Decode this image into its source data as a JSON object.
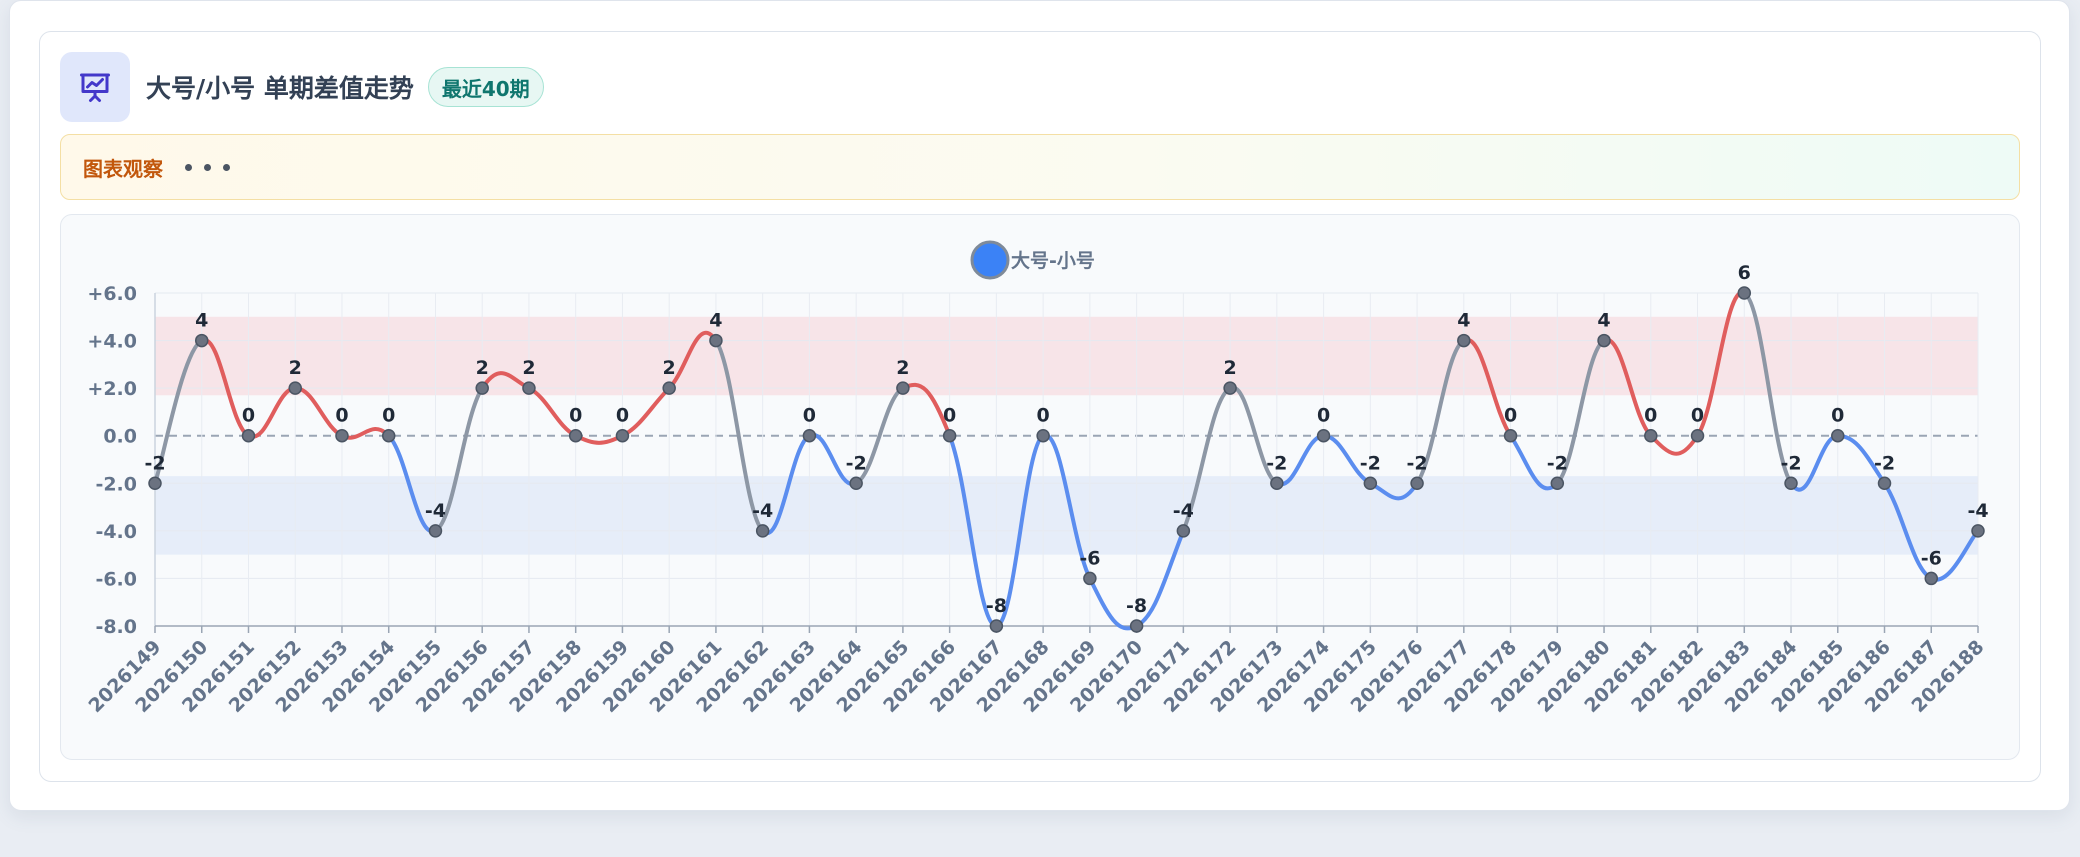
{
  "header": {
    "title": "大号/小号 单期差值走势",
    "badge": "最近40期",
    "icon": "presentation-chart-icon"
  },
  "observation": {
    "label": "图表观察"
  },
  "colors": {
    "positive": "#e05d5d",
    "negative": "#5b8def",
    "neutral": "#8d97a5",
    "legend": "#3b82f6",
    "band_positive": "#f7e4e8",
    "band_negative": "#e6edf9"
  },
  "chart_data": {
    "type": "line",
    "title": "",
    "xlabel": "",
    "ylabel": "",
    "ylim": [
      -8,
      6
    ],
    "yticks": [
      "+6.0",
      "+4.0",
      "+2.0",
      "0.0",
      "-2.0",
      "-4.0",
      "-6.0",
      "-8.0"
    ],
    "ytick_values": [
      6,
      4,
      2,
      0,
      -2,
      -4,
      -6,
      -8
    ],
    "legend_position": "top-center",
    "grid": true,
    "bands": [
      {
        "from": 1.7,
        "to": 5.0,
        "name": "positive"
      },
      {
        "from": -5.0,
        "to": -1.7,
        "name": "negative"
      }
    ],
    "categories": [
      "2026149",
      "2026150",
      "2026151",
      "2026152",
      "2026153",
      "2026154",
      "2026155",
      "2026156",
      "2026157",
      "2026158",
      "2026159",
      "2026160",
      "2026161",
      "2026162",
      "2026163",
      "2026164",
      "2026165",
      "2026166",
      "2026167",
      "2026168",
      "2026169",
      "2026170",
      "2026171",
      "2026172",
      "2026173",
      "2026174",
      "2026175",
      "2026176",
      "2026177",
      "2026178",
      "2026179",
      "2026180",
      "2026181",
      "2026182",
      "2026183",
      "2026184",
      "2026185",
      "2026186",
      "2026187",
      "2026188"
    ],
    "series": [
      {
        "name": "大号-小号",
        "values": [
          -2,
          4,
          0,
          2,
          0,
          0,
          -4,
          2,
          2,
          0,
          0,
          2,
          4,
          -4,
          0,
          -2,
          2,
          0,
          -8,
          0,
          -6,
          -8,
          -4,
          2,
          -2,
          0,
          -2,
          -2,
          4,
          0,
          -2,
          4,
          0,
          0,
          6,
          -2,
          0,
          -2,
          -6,
          -4
        ]
      }
    ]
  }
}
